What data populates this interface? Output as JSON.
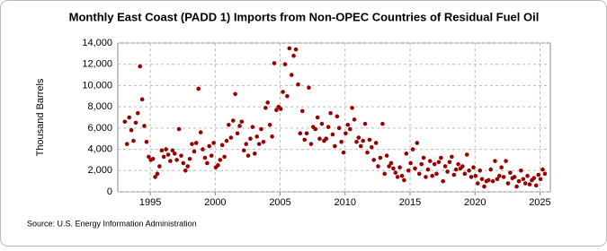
{
  "chart_data": {
    "type": "scatter",
    "title": "Monthly East Coast (PADD 1) Imports from Non-OPEC Countries of Residual Fuel Oil",
    "y_label": "Thousand Barrels",
    "source": "Source: U.S. Energy Information Administration",
    "color": "#990000",
    "grid": true,
    "xlim": [
      1992.5,
      2025.8
    ],
    "xticks": [
      1995,
      2000,
      2005,
      2010,
      2015,
      2020,
      2025
    ],
    "ylim": [
      0,
      14000
    ],
    "yticks": [
      0,
      {
        "value": 2000,
        "label": "2,000"
      },
      {
        "value": 4000,
        "label": "4,000"
      },
      {
        "value": 6000,
        "label": "6,000"
      },
      {
        "value": 8000,
        "label": "8,000"
      },
      {
        "value": 10000,
        "label": "10,000"
      },
      {
        "value": 12000,
        "label": "12,000"
      },
      {
        "value": 14000,
        "label": "14,000"
      }
    ],
    "x": [
      1993.04,
      1993.21,
      1993.38,
      1993.54,
      1993.71,
      1993.88,
      1994.04,
      1994.21,
      1994.38,
      1994.54,
      1994.71,
      1994.88,
      1995.04,
      1995.21,
      1995.38,
      1995.54,
      1995.71,
      1995.88,
      1996.04,
      1996.21,
      1996.38,
      1996.54,
      1996.71,
      1996.88,
      1997.04,
      1997.21,
      1997.38,
      1997.54,
      1997.71,
      1997.88,
      1998.04,
      1998.21,
      1998.38,
      1998.54,
      1998.71,
      1998.88,
      1999.04,
      1999.21,
      1999.38,
      1999.54,
      1999.71,
      1999.88,
      2000.04,
      2000.21,
      2000.38,
      2000.54,
      2000.71,
      2000.88,
      2001.04,
      2001.21,
      2001.38,
      2001.54,
      2001.71,
      2001.88,
      2002.04,
      2002.21,
      2002.38,
      2002.54,
      2002.71,
      2002.88,
      2003.04,
      2003.21,
      2003.38,
      2003.54,
      2003.71,
      2003.88,
      2004.04,
      2004.21,
      2004.38,
      2004.54,
      2004.71,
      2004.88,
      2005.04,
      2005.21,
      2005.38,
      2005.54,
      2005.71,
      2005.88,
      2006.04,
      2006.21,
      2006.38,
      2006.54,
      2006.71,
      2006.88,
      2007.04,
      2007.21,
      2007.38,
      2007.54,
      2007.71,
      2007.88,
      2008.04,
      2008.21,
      2008.38,
      2008.54,
      2008.71,
      2008.88,
      2009.04,
      2009.21,
      2009.38,
      2009.54,
      2009.71,
      2009.88,
      2010.04,
      2010.21,
      2010.38,
      2010.54,
      2010.71,
      2010.88,
      2011.04,
      2011.21,
      2011.38,
      2011.54,
      2011.71,
      2011.88,
      2012.04,
      2012.21,
      2012.38,
      2012.54,
      2012.71,
      2012.88,
      2013.04,
      2013.21,
      2013.38,
      2013.54,
      2013.71,
      2013.88,
      2014.04,
      2014.21,
      2014.38,
      2014.54,
      2014.71,
      2014.88,
      2015.04,
      2015.21,
      2015.38,
      2015.54,
      2015.71,
      2015.88,
      2016.04,
      2016.21,
      2016.38,
      2016.54,
      2016.71,
      2016.88,
      2017.04,
      2017.21,
      2017.38,
      2017.54,
      2017.71,
      2017.88,
      2018.04,
      2018.21,
      2018.38,
      2018.54,
      2018.71,
      2018.88,
      2019.04,
      2019.21,
      2019.38,
      2019.54,
      2019.71,
      2019.88,
      2020.04,
      2020.21,
      2020.38,
      2020.54,
      2020.71,
      2020.88,
      2021.04,
      2021.21,
      2021.38,
      2021.54,
      2021.71,
      2021.88,
      2022.04,
      2022.21,
      2022.38,
      2022.54,
      2022.71,
      2022.88,
      2023.04,
      2023.21,
      2023.38,
      2023.54,
      2023.71,
      2023.88,
      2024.04,
      2024.21,
      2024.38,
      2024.54,
      2024.71,
      2024.88,
      2025.04,
      2025.21,
      2025.38
    ],
    "values": [
      6600,
      4500,
      7000,
      5800,
      4800,
      6500,
      7400,
      11800,
      8700,
      6200,
      4700,
      3300,
      3000,
      3100,
      1400,
      1700,
      2400,
      3900,
      3300,
      4000,
      3500,
      2900,
      3900,
      3600,
      3000,
      5900,
      3400,
      2700,
      2000,
      2400,
      3100,
      4500,
      3800,
      4600,
      9700,
      5600,
      4000,
      3200,
      2700,
      4300,
      3400,
      4600,
      2300,
      2500,
      3000,
      4400,
      3300,
      4800,
      6300,
      5100,
      6700,
      9200,
      5500,
      6200,
      6600,
      3900,
      4500,
      3400,
      5000,
      6100,
      3600,
      5200,
      4500,
      5900,
      4700,
      7900,
      8400,
      6300,
      5200,
      12100,
      7700,
      8000,
      7800,
      9400,
      12000,
      9000,
      13500,
      11000,
      12800,
      13400,
      10100,
      5500,
      7600,
      4900,
      5500,
      9800,
      4500,
      6100,
      5900,
      7000,
      5000,
      6400,
      4800,
      5000,
      6100,
      7400,
      5400,
      4300,
      7100,
      6000,
      4700,
      3700,
      5500,
      6300,
      5900,
      7900,
      6800,
      4700,
      5100,
      4300,
      4800,
      6400,
      3700,
      4900,
      4200,
      3000,
      4600,
      2400,
      3200,
      6400,
      1700,
      3400,
      2400,
      2700,
      2200,
      1800,
      1400,
      2300,
      1500,
      1100,
      3600,
      2000,
      2700,
      4000,
      2200,
      4600,
      1700,
      2600,
      3200,
      1400,
      2100,
      2900,
      1500,
      2600,
      1700,
      2800,
      3200,
      1000,
      2400,
      1900,
      2800,
      3300,
      1600,
      2100,
      2600,
      2200,
      2400,
      1700,
      3500,
      2000,
      1400,
      2300,
      1500,
      800,
      2000,
      1200,
      500,
      1000,
      1100,
      2100,
      1000,
      2900,
      1200,
      1500,
      2300,
      1400,
      2900,
      800,
      1800,
      1300,
      1400,
      500,
      1000,
      2000,
      1200,
      800,
      1500,
      700,
      1100,
      1300,
      600,
      1600,
      1200,
      2100,
      1700
    ]
  }
}
